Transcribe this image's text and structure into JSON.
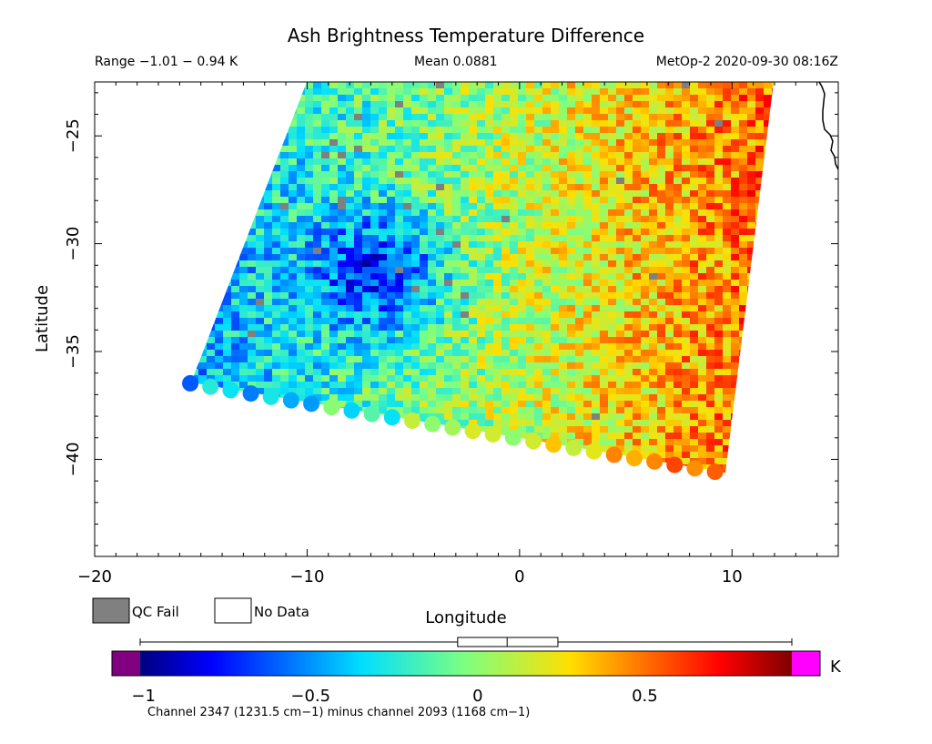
{
  "header": {
    "title": "Ash Brightness Temperature Difference",
    "range": "Range −1.01 − 0.94 K",
    "mean": "Mean 0.0881",
    "satellite_time": "MetOp-2 2020-09-30 08:16Z"
  },
  "legend": {
    "qc_fail": "QC Fail",
    "no_data": "No Data",
    "qc_fail_color": "#808080",
    "no_data_color": "#ffffff"
  },
  "colorbar": {
    "unit": "K",
    "caption": "Channel 2347 (1231.5 cm−1) minus channel 2093 (1168 cm−1)",
    "tick_labels": [
      "−1",
      "−0.5",
      "0",
      "0.5"
    ],
    "range": [
      -1.01,
      0.94
    ],
    "under_color": "#800080",
    "over_color": "#ff00ff",
    "box_plot": {
      "whisker_low": -1.01,
      "q1": -0.06,
      "median": 0.0881,
      "q3": 0.24,
      "whisker_high": 0.94
    }
  },
  "chart_data": {
    "type": "heatmap",
    "title": "Ash Brightness Temperature Difference",
    "xlabel": "Longitude",
    "ylabel": "Latitude",
    "xlim": [
      -20,
      15
    ],
    "ylim": [
      -44.5,
      -22.5
    ],
    "xticks": [
      -20,
      -10,
      0,
      10
    ],
    "yticks": [
      -25,
      -30,
      -35,
      -40
    ],
    "xtick_labels": [
      "−20",
      "−10",
      "0",
      "10"
    ],
    "ytick_labels": [
      "−25",
      "−30",
      "−35",
      "−40"
    ],
    "value_range": [
      -1.01,
      0.94
    ],
    "mean": 0.0881,
    "units": "K",
    "swath_corners": {
      "top_left": [
        -9.8,
        -22.5
      ],
      "top_right": [
        11.8,
        -22.5
      ],
      "bottom_left": [
        -15.5,
        -36.6
      ],
      "bottom_right": [
        9.2,
        -40.7
      ]
    },
    "regions": [
      {
        "area": "west-central cluster",
        "lon": [
          -9,
          -4
        ],
        "lat": [
          -33.5,
          -29
        ],
        "typical_value": -0.55
      },
      {
        "area": "east edge",
        "lon": [
          6,
          11
        ],
        "lat": [
          -40,
          -23
        ],
        "typical_value": 0.55
      },
      {
        "area": "center",
        "lon": [
          -3,
          4
        ],
        "lat": [
          -35,
          -27
        ],
        "typical_value": 0.0
      }
    ]
  }
}
